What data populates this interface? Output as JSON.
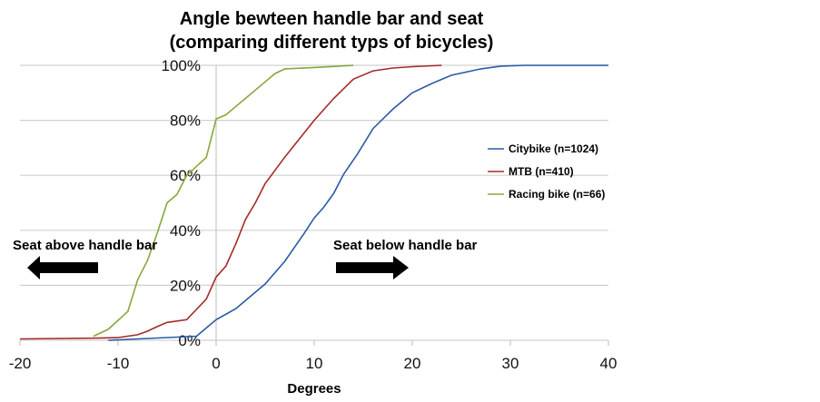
{
  "chart_data": {
    "type": "line",
    "title": [
      "Angle bewteen handle bar and seat",
      "(comparing different typs of bicycles)"
    ],
    "xlabel": "Degrees",
    "ylabel": "",
    "xlim": [
      -20,
      40
    ],
    "ylim": [
      0,
      100
    ],
    "xticks": [
      -20,
      -10,
      0,
      10,
      20,
      30,
      40
    ],
    "yticks": [
      0,
      20,
      40,
      60,
      80,
      100
    ],
    "ytick_labels": [
      "0%",
      "20%",
      "40%",
      "60%",
      "80%",
      "100%"
    ],
    "grid": "horizontal",
    "legend_position": "right",
    "series": [
      {
        "name": "Citybike (n=1024)",
        "color": "#2a5ba5",
        "x": [
          -11,
          -8,
          -5,
          -2,
          -1,
          0,
          2,
          5,
          7,
          9,
          10,
          11,
          12,
          13,
          14.4,
          16,
          18,
          20,
          22,
          24,
          27,
          29,
          31.5,
          40
        ],
        "y": [
          0,
          0.5,
          1,
          1.5,
          4.5,
          7.5,
          11.5,
          20.5,
          28.7,
          39,
          44.5,
          48.5,
          53.5,
          60.4,
          67.7,
          77,
          84,
          90,
          93.4,
          96.4,
          98.7,
          99.7,
          100,
          100
        ]
      },
      {
        "name": "MTB (n=410)",
        "color": "#a52a2a",
        "x": [
          -20,
          -12,
          -10,
          -8,
          -7,
          -6,
          -5,
          -3,
          -1,
          0,
          1,
          2,
          3,
          4,
          5,
          7,
          10,
          12,
          14,
          16,
          18,
          20,
          23
        ],
        "y": [
          0.5,
          0.8,
          1,
          2,
          3.3,
          5,
          6.5,
          7.5,
          15,
          23,
          27,
          35,
          44,
          50,
          57,
          66.6,
          80,
          88,
          95,
          98,
          99,
          99.5,
          100
        ]
      },
      {
        "name": "Racing bike (n=66)",
        "color": "#86a83a",
        "x": [
          -12.5,
          -11,
          -9,
          -8,
          -7,
          -6,
          -5,
          -4,
          -3,
          -1,
          0,
          1,
          3,
          5,
          6,
          7,
          10,
          14
        ],
        "y": [
          1.5,
          4,
          10.5,
          22,
          29,
          39,
          50,
          53,
          60,
          66.5,
          80.5,
          82,
          88,
          94,
          97,
          98.7,
          99.2,
          100
        ]
      }
    ],
    "annotations": [
      "Seat above handle bar",
      "Seat below handle bar"
    ]
  }
}
